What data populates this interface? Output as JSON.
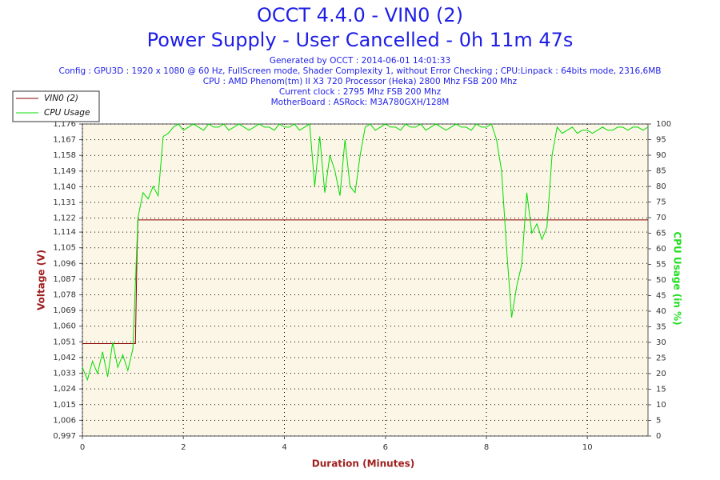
{
  "chart_data": {
    "type": "line",
    "title": "OCCT 4.4.0 - VIN0 (2)",
    "subtitle": "Power Supply - User Cancelled - 0h 11m 47s",
    "notes": [
      "Generated by OCCT : 2014-06-01 14:01:33",
      "Config : GPU3D : 1920 x 1080 @ 60 Hz, FullScreen mode, Shader Complexity 1, without Error Checking ; CPU:Linpack : 64bits mode, 2316,6MB",
      "CPU : AMD Phenom(tm) II X3 720 Processor (Heka) 2800 Mhz FSB 200 Mhz",
      "Current clock : 2795 Mhz FSB 200 Mhz",
      "MotherBoard : ASRock: M3A780GXH/128M"
    ],
    "x_label": "Duration (Minutes)",
    "y_label": "Voltage (V)",
    "y2_label": "CPU Usage (in %)",
    "xlim": [
      0,
      11.2
    ],
    "xticks": [
      0,
      2,
      4,
      6,
      8,
      10
    ],
    "ylim": [
      0.997,
      1.176
    ],
    "yticks": [
      {
        "value": 0.997,
        "label": "0,997"
      },
      {
        "value": 1.006,
        "label": "1,006"
      },
      {
        "value": 1.015,
        "label": "1,015"
      },
      {
        "value": 1.024,
        "label": "1,024"
      },
      {
        "value": 1.033,
        "label": "1,033"
      },
      {
        "value": 1.042,
        "label": "1,042"
      },
      {
        "value": 1.051,
        "label": "1,051"
      },
      {
        "value": 1.06,
        "label": "1,060"
      },
      {
        "value": 1.069,
        "label": "1,069"
      },
      {
        "value": 1.078,
        "label": "1,078"
      },
      {
        "value": 1.087,
        "label": "1,087"
      },
      {
        "value": 1.096,
        "label": "1,096"
      },
      {
        "value": 1.105,
        "label": "1,105"
      },
      {
        "value": 1.114,
        "label": "1,114"
      },
      {
        "value": 1.122,
        "label": "1,122"
      },
      {
        "value": 1.131,
        "label": "1,131"
      },
      {
        "value": 1.14,
        "label": "1,140"
      },
      {
        "value": 1.149,
        "label": "1,149"
      },
      {
        "value": 1.158,
        "label": "1,158"
      },
      {
        "value": 1.167,
        "label": "1,167"
      },
      {
        "value": 1.176,
        "label": "1,176"
      }
    ],
    "y2lim": [
      0,
      100
    ],
    "y2ticks": [
      0,
      5,
      10,
      15,
      20,
      25,
      30,
      35,
      40,
      45,
      50,
      55,
      60,
      65,
      70,
      75,
      80,
      85,
      90,
      95,
      100
    ],
    "grid": true,
    "legend": "top-left",
    "series": [
      {
        "name": "VIN0 (2)",
        "color": "#8b0000",
        "x": [
          0,
          1.05,
          1.08,
          1.1,
          11.2
        ],
        "values": [
          1.05,
          1.05,
          1.1,
          1.121,
          1.121
        ]
      },
      {
        "name": "CPU Usage",
        "color": "#00dd00",
        "axis": "y2",
        "x": [
          0,
          0.1,
          0.2,
          0.3,
          0.4,
          0.5,
          0.6,
          0.7,
          0.8,
          0.9,
          1,
          1.1,
          1.2,
          1.3,
          1.4,
          1.5,
          1.6,
          1.7,
          1.8,
          1.9,
          2,
          2.1,
          2.2,
          2.3,
          2.4,
          2.5,
          2.6,
          2.7,
          2.8,
          2.9,
          3,
          3.1,
          3.2,
          3.3,
          3.4,
          3.5,
          3.6,
          3.7,
          3.8,
          3.9,
          4,
          4.1,
          4.2,
          4.3,
          4.4,
          4.5,
          4.6,
          4.7,
          4.8,
          4.9,
          5,
          5.1,
          5.2,
          5.3,
          5.4,
          5.5,
          5.6,
          5.7,
          5.8,
          5.9,
          6,
          6.1,
          6.2,
          6.3,
          6.4,
          6.5,
          6.6,
          6.7,
          6.8,
          6.9,
          7,
          7.1,
          7.2,
          7.3,
          7.4,
          7.5,
          7.6,
          7.7,
          7.8,
          7.9,
          8,
          8.1,
          8.2,
          8.3,
          8.4,
          8.5,
          8.6,
          8.7,
          8.8,
          8.9,
          9,
          9.1,
          9.2,
          9.3,
          9.4,
          9.5,
          9.6,
          9.7,
          9.8,
          9.9,
          10,
          10.1,
          10.2,
          10.3,
          10.4,
          10.5,
          10.6,
          10.7,
          10.8,
          10.9,
          11,
          11.1,
          11.2
        ],
        "values": [
          22,
          18,
          24,
          20,
          27,
          19,
          30,
          22,
          26,
          21,
          28,
          70,
          78,
          76,
          80,
          77,
          96,
          97,
          99,
          100,
          98,
          99,
          100,
          99,
          98,
          100,
          99,
          99,
          100,
          98,
          99,
          100,
          99,
          98,
          99,
          100,
          99,
          99,
          98,
          100,
          99,
          99,
          100,
          98,
          99,
          100,
          80,
          96,
          78,
          90,
          85,
          77,
          95,
          80,
          78,
          90,
          99,
          100,
          98,
          99,
          100,
          99,
          99,
          98,
          100,
          99,
          99,
          100,
          98,
          99,
          100,
          99,
          98,
          99,
          100,
          99,
          99,
          98,
          100,
          99,
          99,
          100,
          95,
          85,
          60,
          38,
          48,
          55,
          78,
          65,
          68,
          63,
          67,
          90,
          99,
          97,
          98,
          99,
          97,
          98,
          98,
          97,
          98,
          99,
          98,
          98,
          99,
          99,
          98,
          99,
          99,
          98,
          99
        ]
      }
    ]
  }
}
